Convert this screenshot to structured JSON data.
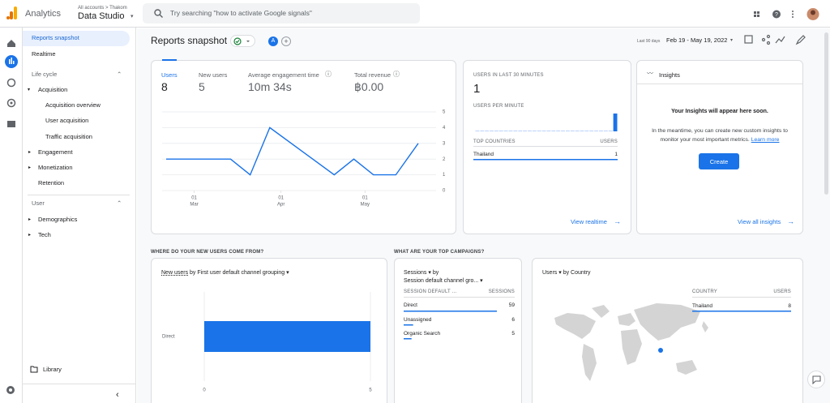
{
  "header": {
    "product": "Analytics",
    "breadcrumb": "All accounts > Thakom",
    "property": "Data Studio",
    "search_placeholder": "Try searching \"how to activate Google signals\""
  },
  "nav": {
    "items": [
      "Reports snapshot",
      "Realtime",
      "Life cycle",
      "Acquisition",
      "Acquisition overview",
      "User acquisition",
      "Traffic acquisition",
      "Engagement",
      "Monetization",
      "Retention",
      "User",
      "Demographics",
      "Tech"
    ],
    "library": "Library"
  },
  "toolbar": {
    "title": "Reports snapshot",
    "comparison": "A",
    "date_label": "Last 90 days",
    "date_range": "Feb 19 - May 19, 2022"
  },
  "metrics": [
    {
      "label": "Users",
      "value": 8
    },
    {
      "label": "New users",
      "value": 5
    },
    {
      "label": "Average engagement time",
      "value": "10m 34s"
    },
    {
      "label": "Total revenue",
      "value": "฿0.00"
    }
  ],
  "chart_data": [
    {
      "type": "line",
      "x": [
        0,
        23,
        30,
        37,
        60,
        67,
        74,
        82,
        90
      ],
      "values": [
        2,
        2,
        1,
        4,
        1,
        2,
        1,
        1,
        3
      ],
      "color": "#1a73e8",
      "xlim": [
        0,
        90
      ],
      "xticks": [
        {
          "value": 10,
          "day": "01",
          "month": "Mar"
        },
        {
          "value": 41,
          "day": "01",
          "month": "Apr"
        },
        {
          "value": 71,
          "day": "01",
          "month": "May"
        }
      ],
      "ylim": [
        0,
        5
      ],
      "yticks": [
        0,
        1,
        2,
        3,
        4,
        5
      ],
      "grid": true
    },
    {
      "type": "bar",
      "title": "USERS PER MINUTE",
      "values": [
        0,
        0,
        0,
        0,
        0,
        0,
        0,
        0,
        0,
        0,
        0,
        0,
        0,
        0,
        0,
        0,
        0,
        0,
        0,
        0,
        0,
        0,
        0,
        0,
        0,
        0,
        0,
        0,
        0,
        1
      ],
      "color": "#1a73e8",
      "ylim": [
        0,
        1
      ]
    },
    {
      "type": "hbar",
      "categories": [
        "Direct"
      ],
      "values": [
        5
      ],
      "color": "#1a73e8",
      "xlim": [
        0,
        5
      ],
      "xticks": [
        0,
        5
      ]
    }
  ],
  "realtime": {
    "title": "USERS IN LAST 30 MINUTES",
    "value": 1,
    "headers": [
      "TOP COUNTRIES",
      "USERS"
    ],
    "rows": [
      [
        "Thailand",
        1
      ]
    ],
    "link": "View realtime"
  },
  "insights": {
    "title": "Insights",
    "heading": "Your Insights will appear here soon.",
    "body": "In the meantime, you can create new custom insights to monitor your most important metrics.",
    "learn_more": "Learn more",
    "button": "Create",
    "link": "View all insights"
  },
  "sections": [
    "WHERE DO YOUR NEW USERS COME FROM?",
    "WHAT ARE YOUR TOP CAMPAIGNS?"
  ],
  "acquisition": {
    "metric": "New users",
    "dimension": "by First user default channel grouping"
  },
  "campaigns": {
    "metric": "Sessions",
    "by": "by",
    "dimension": "Session default channel gro...",
    "headers": [
      "SESSION DEFAULT ...",
      "SESSIONS"
    ],
    "rows": [
      [
        "Direct",
        59
      ],
      [
        "Unassigned",
        6
      ],
      [
        "Organic Search",
        5
      ]
    ]
  },
  "country": {
    "metric": "Users",
    "dimension": "by Country",
    "headers": [
      "COUNTRY",
      "USERS"
    ],
    "rows": [
      [
        "Thailand",
        8
      ]
    ]
  }
}
